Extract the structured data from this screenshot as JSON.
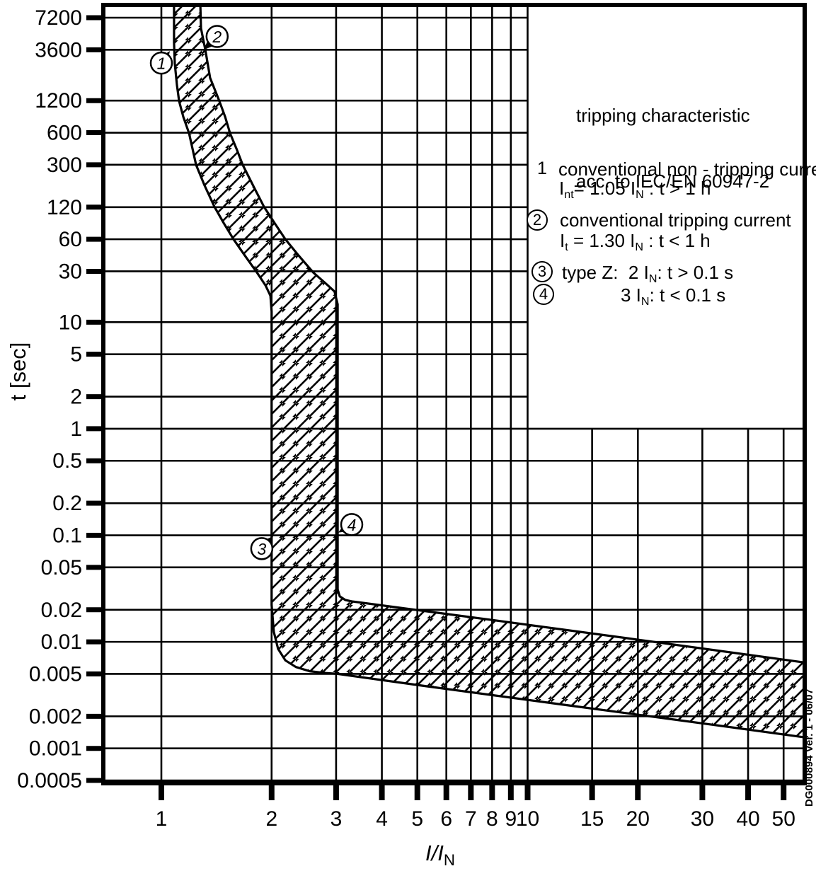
{
  "colors": {
    "ink": "#000000",
    "background": "#ffffff"
  },
  "watermark": "DG000894 Ver. 1 - 06/07",
  "axes": {
    "y_title": "t [sec]",
    "x_title": {
      "a": "I/I",
      "sub": "N"
    }
  },
  "legend": {
    "title_line1": "tripping characteristic",
    "title_line2": "acc. to IEC/EN 60947-2",
    "item1": {
      "num": "1",
      "line1": "conventional non - tripping current",
      "f": {
        "a": "I",
        "sub_a": "nt",
        "b": "= 1.05 I",
        "sub_b": "N",
        "c": " : t > 1 h"
      }
    },
    "item2": {
      "num": "2",
      "line1": "conventional tripping current",
      "f": {
        "a": "I",
        "sub_a": "t",
        "b": " = 1.30 I",
        "sub_b": "N",
        "c": " : t < 1 h"
      }
    },
    "item3": {
      "num": "3",
      "f": {
        "a": "type Z:  2 I",
        "sub_a": "N",
        "b": ": t > 0.1 s"
      }
    },
    "item4": {
      "num": "4",
      "f": {
        "a": "3 I",
        "sub_a": "N",
        "b": ": t < 0.1 s"
      }
    }
  },
  "chart_data": {
    "type": "area",
    "title": "tripping characteristic acc. to IEC/EN 60947-2",
    "xlabel": "I/I_N",
    "ylabel": "t [sec]",
    "x_scale": "log",
    "y_scale": "log",
    "xlim": [
      0.694,
      57.2
    ],
    "ylim": [
      0.00047,
      9470
    ],
    "grid": true,
    "x_ticks": [
      1,
      2,
      3,
      4,
      5,
      6,
      7,
      8,
      9,
      10,
      15,
      20,
      30,
      40,
      50
    ],
    "x_tick_labels": [
      "1",
      "2",
      "3",
      "4",
      "5",
      "6",
      "7",
      "8",
      "9",
      "10",
      "15",
      "20",
      "30",
      "40",
      "50"
    ],
    "y_ticks": [
      7200,
      3600,
      1200,
      600,
      300,
      120,
      60,
      30,
      10,
      5,
      2,
      1,
      0.5,
      0.2,
      0.1,
      0.05,
      0.02,
      0.01,
      0.005,
      0.002,
      0.001,
      0.0005
    ],
    "y_tick_labels": [
      "7200",
      "3600",
      "1200",
      "600",
      "300",
      "120",
      "60",
      "30",
      "10",
      "5",
      "2",
      "1",
      "0.5",
      "0.2",
      "0.1",
      "0.05",
      "0.02",
      "0.01",
      "0.005",
      "0.002",
      "0.001",
      "0.0005"
    ],
    "legend_box": {
      "x_left": 10,
      "t_bottom": 1
    },
    "band": {
      "name": "type-Z tripping band",
      "left_boundary": [
        [
          1.083,
          9900
        ],
        [
          1.083,
          4213
        ],
        [
          1.088,
          2663
        ],
        [
          1.103,
          1683
        ],
        [
          1.118,
          1185
        ],
        [
          1.148,
          845
        ],
        [
          1.19,
          595
        ],
        [
          1.216,
          425
        ],
        [
          1.244,
          299
        ],
        [
          1.312,
          192
        ],
        [
          1.396,
          121
        ],
        [
          1.479,
          85.3
        ],
        [
          1.574,
          60
        ],
        [
          1.69,
          42.2
        ],
        [
          1.824,
          29.2
        ],
        [
          1.924,
          22.2
        ],
        [
          1.985,
          17.7
        ],
        [
          2.0,
          12.6
        ],
        [
          2.0,
          0.1
        ],
        [
          2.0,
          0.0222
        ],
        [
          2.028,
          0.0124
        ],
        [
          2.083,
          0.0086
        ],
        [
          2.18,
          0.0067
        ],
        [
          2.33,
          0.0058
        ],
        [
          2.54,
          0.0053
        ],
        [
          2.81,
          0.0051
        ],
        [
          3.03,
          0.005
        ],
        [
          5.23,
          0.00385
        ],
        [
          12.75,
          0.00255
        ],
        [
          31.1,
          0.00169
        ],
        [
          57.0,
          0.00127
        ]
      ],
      "right_boundary": [
        [
          1.277,
          9900
        ],
        [
          1.283,
          5720
        ],
        [
          1.318,
          3600
        ],
        [
          1.359,
          1961
        ],
        [
          1.44,
          1185
        ],
        [
          1.493,
          845
        ],
        [
          1.54,
          595
        ],
        [
          1.603,
          425
        ],
        [
          1.668,
          299
        ],
        [
          1.784,
          189
        ],
        [
          1.906,
          121
        ],
        [
          2.037,
          85.3
        ],
        [
          2.18,
          60
        ],
        [
          2.37,
          42.2
        ],
        [
          2.6,
          29.2
        ],
        [
          2.83,
          22.6
        ],
        [
          2.97,
          19.4
        ],
        [
          3.03,
          14.7
        ],
        [
          3.03,
          0.031
        ],
        [
          3.07,
          0.0267
        ],
        [
          3.18,
          0.0247
        ],
        [
          3.31,
          0.024
        ],
        [
          8.16,
          0.0159
        ],
        [
          19.9,
          0.0105
        ],
        [
          57.0,
          0.0064
        ]
      ]
    },
    "markers": [
      {
        "label": "1",
        "circle_at": [
          1.0,
          2700
        ],
        "arrow_tip": [
          1.055,
          3500
        ]
      },
      {
        "label": "2",
        "circle_at": [
          1.42,
          4800
        ],
        "arrow_tip": [
          1.306,
          3600
        ]
      },
      {
        "label": "3",
        "circle_at": [
          1.88,
          0.075
        ],
        "arrow_tip": [
          2.02,
          0.098
        ]
      },
      {
        "label": "4",
        "circle_at": [
          3.31,
          0.126
        ],
        "arrow_tip": [
          3.04,
          0.106
        ]
      }
    ]
  }
}
